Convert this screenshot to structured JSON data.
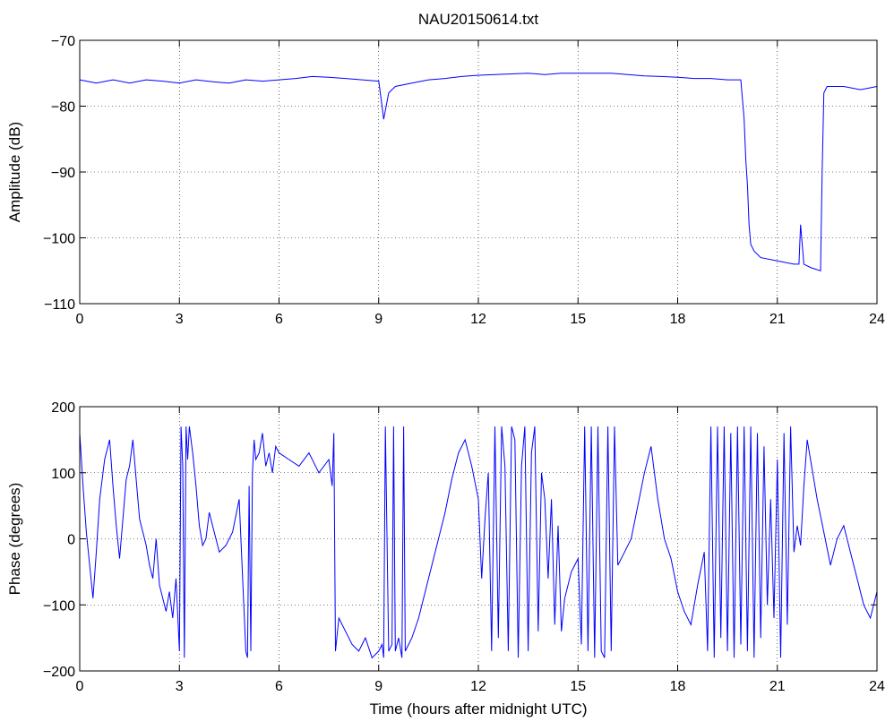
{
  "chart_data": [
    {
      "type": "line",
      "title": "NAU20150614.txt",
      "xlabel": "",
      "ylabel": "Amplitude (dB)",
      "xlim": [
        0,
        24
      ],
      "ylim": [
        -110,
        -70
      ],
      "x_ticks": [
        0,
        3,
        6,
        9,
        12,
        15,
        18,
        21,
        24
      ],
      "x_tick_labels": [
        "0",
        "3",
        "6",
        "9",
        "12",
        "15",
        "18",
        "21",
        "24"
      ],
      "y_ticks": [
        -110,
        -100,
        -90,
        -80,
        -70
      ],
      "y_tick_labels": [
        "−110",
        "−100",
        "−90",
        "−80",
        "−70"
      ],
      "grid": true,
      "line_color": "#0000ff",
      "series": [
        {
          "x": [
            0,
            0.5,
            1,
            1.5,
            2,
            2.5,
            3,
            3.5,
            4,
            4.5,
            5,
            5.5,
            6,
            6.5,
            7,
            7.5,
            8,
            8.5,
            9,
            9.1,
            9.15,
            9.3,
            9.5,
            10,
            10.5,
            11,
            11.5,
            12,
            12.5,
            13,
            13.5,
            14,
            14.5,
            15,
            15.5,
            16,
            16.5,
            17,
            17.5,
            18,
            18.5,
            19,
            19.5,
            19.9,
            20.0,
            20.05,
            20.1,
            20.15,
            20.2,
            20.3,
            20.5,
            21,
            21.5,
            21.65,
            21.7,
            21.8,
            22,
            22.3,
            22.35,
            22.4,
            22.45,
            22.5,
            23,
            23.5,
            24
          ],
          "y": [
            -76,
            -76.5,
            -76,
            -76.5,
            -76,
            -76.2,
            -76.5,
            -76,
            -76.3,
            -76.5,
            -76,
            -76.2,
            -76,
            -75.8,
            -75.5,
            -75.6,
            -75.8,
            -76,
            -76.2,
            -80,
            -82,
            -78,
            -77,
            -76.5,
            -76,
            -75.8,
            -75.5,
            -75.3,
            -75.2,
            -75.1,
            -75,
            -75.2,
            -75,
            -75,
            -75,
            -75,
            -75.2,
            -75.4,
            -75.5,
            -75.6,
            -75.8,
            -75.8,
            -76,
            -76,
            -82,
            -88,
            -92,
            -98,
            -101,
            -102,
            -103,
            -103.5,
            -104,
            -104,
            -98,
            -104,
            -104.5,
            -105,
            -90,
            -78,
            -77.5,
            -77,
            -77,
            -77.5,
            -77
          ]
        }
      ]
    },
    {
      "type": "line",
      "title": "",
      "xlabel": "Time (hours after midnight UTC)",
      "ylabel": "Phase (degrees)",
      "xlim": [
        0,
        24
      ],
      "ylim": [
        -200,
        200
      ],
      "x_ticks": [
        0,
        3,
        6,
        9,
        12,
        15,
        18,
        21,
        24
      ],
      "x_tick_labels": [
        "0",
        "3",
        "6",
        "9",
        "12",
        "15",
        "18",
        "21",
        "24"
      ],
      "y_ticks": [
        -200,
        -100,
        0,
        100,
        200
      ],
      "y_tick_labels": [
        "−200",
        "−100",
        "0",
        "100",
        "200"
      ],
      "grid": true,
      "line_color": "#0000ff",
      "series": [
        {
          "x": [
            0,
            0.1,
            0.2,
            0.3,
            0.4,
            0.5,
            0.6,
            0.75,
            0.9,
            1.0,
            1.1,
            1.2,
            1.3,
            1.4,
            1.5,
            1.6,
            1.7,
            1.8,
            1.9,
            2.0,
            2.1,
            2.2,
            2.3,
            2.4,
            2.5,
            2.6,
            2.7,
            2.8,
            2.9,
            3.0,
            3.05,
            3.1,
            3.15,
            3.2,
            3.25,
            3.3,
            3.4,
            3.5,
            3.6,
            3.7,
            3.8,
            3.9,
            4.0,
            4.2,
            4.4,
            4.6,
            4.8,
            5.0,
            5.05,
            5.1,
            5.15,
            5.2,
            5.25,
            5.3,
            5.4,
            5.5,
            5.6,
            5.7,
            5.8,
            5.9,
            6.0,
            6.3,
            6.6,
            6.9,
            7.2,
            7.5,
            7.6,
            7.65,
            7.7,
            7.8,
            8.0,
            8.2,
            8.4,
            8.6,
            8.8,
            9.0,
            9.1,
            9.15,
            9.2,
            9.3,
            9.4,
            9.45,
            9.5,
            9.6,
            9.7,
            9.75,
            9.8,
            9.9,
            10.0,
            10.2,
            10.4,
            10.6,
            10.8,
            11.0,
            11.2,
            11.4,
            11.6,
            11.8,
            12.0,
            12.1,
            12.2,
            12.3,
            12.4,
            12.5,
            12.6,
            12.7,
            12.8,
            12.9,
            13.0,
            13.1,
            13.2,
            13.3,
            13.4,
            13.5,
            13.6,
            13.7,
            13.8,
            13.9,
            14.0,
            14.1,
            14.2,
            14.3,
            14.4,
            14.5,
            14.6,
            14.8,
            15.0,
            15.1,
            15.2,
            15.3,
            15.4,
            15.5,
            15.6,
            15.7,
            15.8,
            15.9,
            16.0,
            16.1,
            16.2,
            16.4,
            16.6,
            16.8,
            17.0,
            17.2,
            17.4,
            17.6,
            17.8,
            18.0,
            18.2,
            18.4,
            18.6,
            18.8,
            18.9,
            19.0,
            19.1,
            19.2,
            19.3,
            19.4,
            19.5,
            19.6,
            19.7,
            19.8,
            19.9,
            20.0,
            20.1,
            20.2,
            20.3,
            20.4,
            20.5,
            20.6,
            20.7,
            20.8,
            20.9,
            21.0,
            21.1,
            21.2,
            21.3,
            21.4,
            21.5,
            21.6,
            21.7,
            21.8,
            21.9,
            22.0,
            22.2,
            22.4,
            22.6,
            22.8,
            23.0,
            23.2,
            23.4,
            23.6,
            23.8,
            24.0
          ],
          "y": [
            160,
            80,
            10,
            -40,
            -90,
            -20,
            60,
            120,
            150,
            80,
            20,
            -30,
            30,
            90,
            110,
            150,
            90,
            30,
            10,
            -10,
            -40,
            -60,
            0,
            -70,
            -90,
            -110,
            -80,
            -120,
            -60,
            -170,
            170,
            110,
            -180,
            170,
            120,
            170,
            130,
            80,
            20,
            -10,
            0,
            40,
            20,
            -20,
            -10,
            10,
            60,
            -170,
            -180,
            80,
            -170,
            100,
            150,
            120,
            130,
            160,
            110,
            130,
            100,
            140,
            130,
            120,
            110,
            130,
            100,
            120,
            80,
            160,
            -170,
            -120,
            -140,
            -160,
            -170,
            -150,
            -180,
            -170,
            -160,
            -180,
            170,
            -170,
            -160,
            170,
            -170,
            -150,
            -180,
            170,
            -170,
            -160,
            -150,
            -120,
            -80,
            -40,
            0,
            40,
            90,
            130,
            150,
            110,
            60,
            -60,
            30,
            100,
            -170,
            170,
            -150,
            170,
            110,
            -170,
            170,
            150,
            -180,
            110,
            170,
            -170,
            130,
            170,
            -140,
            100,
            60,
            -60,
            60,
            -130,
            20,
            -140,
            -90,
            -50,
            -30,
            -160,
            170,
            -170,
            170,
            -180,
            170,
            -170,
            -180,
            170,
            -170,
            170,
            -40,
            -20,
            0,
            50,
            100,
            140,
            60,
            0,
            -30,
            -80,
            -110,
            -130,
            -70,
            -20,
            -170,
            170,
            -180,
            170,
            -150,
            170,
            -170,
            160,
            -180,
            170,
            -160,
            170,
            -170,
            170,
            -180,
            160,
            -150,
            140,
            -100,
            60,
            -120,
            120,
            -180,
            160,
            -130,
            170,
            -20,
            20,
            -10,
            80,
            150,
            120,
            60,
            10,
            -40,
            0,
            20,
            -20,
            -60,
            -100,
            -120,
            -80
          ]
        }
      ]
    }
  ]
}
